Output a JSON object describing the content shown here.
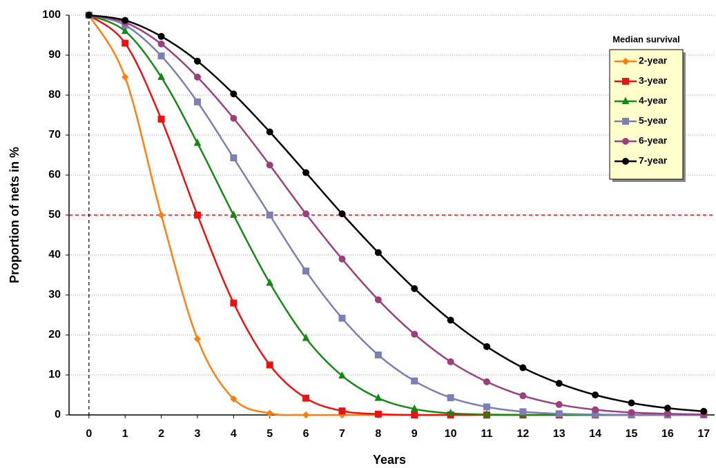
{
  "chart_data": {
    "type": "line",
    "xlabel": "Years",
    "ylabel": "Proportion of nets in %",
    "legend_title": "Median survival",
    "legend": "upper right",
    "grid": true,
    "smooth": true,
    "x": [
      0,
      1,
      2,
      3,
      4,
      5,
      6,
      7,
      8,
      9,
      10,
      11,
      12,
      13,
      14,
      15,
      16,
      17
    ],
    "xlim": [
      -0.55,
      17.3
    ],
    "xticks": [
      0,
      1,
      2,
      3,
      4,
      5,
      6,
      7,
      8,
      9,
      10,
      11,
      12,
      13,
      14,
      15,
      16,
      17
    ],
    "ylim": [
      0,
      100
    ],
    "yticks": [
      0,
      10,
      20,
      30,
      40,
      50,
      60,
      70,
      80,
      90,
      100
    ],
    "reference_lines": [
      {
        "axis": "y",
        "value": 50,
        "color": "#ff0000"
      },
      {
        "axis": "x",
        "value": 0,
        "color": "#000000"
      }
    ],
    "series": [
      {
        "name": "2-year",
        "color": "#ff7f0e",
        "marker": "diamond",
        "values": [
          100,
          84.5,
          50,
          19,
          4,
          0.4,
          0,
          0,
          0,
          0,
          0,
          0,
          0,
          0,
          0,
          0,
          0,
          0
        ]
      },
      {
        "name": "3-year",
        "color": "#ee1111",
        "marker": "square",
        "values": [
          100,
          93,
          74,
          50,
          28,
          12.5,
          4.2,
          1,
          0.2,
          0,
          0,
          0,
          0,
          0,
          0,
          0,
          0,
          0
        ]
      },
      {
        "name": "4-year",
        "color": "#138a13",
        "marker": "triangle",
        "values": [
          100,
          96,
          84.5,
          68,
          50,
          33,
          19.2,
          9.8,
          4.2,
          1.5,
          0.4,
          0.1,
          0,
          0,
          0,
          0,
          0,
          0
        ]
      },
      {
        "name": "5-year",
        "color": "#7b7fb3",
        "marker": "square",
        "values": [
          100,
          97.5,
          89.8,
          78.3,
          64.3,
          50,
          36,
          24.2,
          15,
          8.5,
          4.3,
          2,
          0.8,
          0.3,
          0.1,
          0,
          0,
          0
        ]
      },
      {
        "name": "6-year",
        "color": "#9b3f7f",
        "marker": "circle",
        "values": [
          100,
          98.2,
          92.8,
          84.5,
          74.2,
          62.5,
          50.3,
          39,
          28.8,
          20.2,
          13.3,
          8.3,
          4.8,
          2.6,
          1.3,
          0.6,
          0.3,
          0.1
        ]
      },
      {
        "name": "7-year",
        "color": "#000000",
        "marker": "circle",
        "values": [
          100,
          98.7,
          94.7,
          88.5,
          80.3,
          70.8,
          60.6,
          50.3,
          40.6,
          31.6,
          23.7,
          17.1,
          11.8,
          7.9,
          5,
          3,
          1.7,
          0.9
        ]
      }
    ]
  }
}
